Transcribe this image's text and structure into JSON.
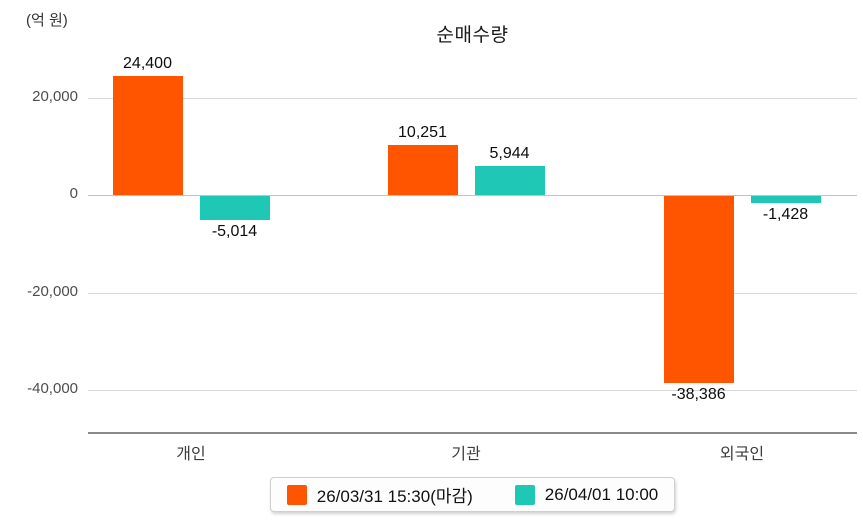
{
  "chart_data": {
    "type": "bar",
    "title": "순매수량",
    "ylabel": "(억 원)",
    "categories": [
      "개인",
      "기관",
      "외국인"
    ],
    "series": [
      {
        "name": "26/03/31 15:30(마감)",
        "color": "#FF5500",
        "values": [
          24400,
          10251,
          -38386
        ],
        "labels": [
          "24,400",
          "10,251",
          "-38,386"
        ]
      },
      {
        "name": "26/04/01 10:00",
        "color": "#1EC8B5",
        "values": [
          -5014,
          5944,
          -1428
        ],
        "labels": [
          "-5,014",
          "5,944",
          "-1,428"
        ]
      }
    ],
    "y_ticks": [
      {
        "value": 20000,
        "label": "20,000"
      },
      {
        "value": 0,
        "label": "0"
      },
      {
        "value": -20000,
        "label": "-20,000"
      },
      {
        "value": -40000,
        "label": "-40,000"
      }
    ],
    "ylim": [
      -49000,
      28000
    ],
    "grid": true,
    "legend_position": "bottom"
  }
}
